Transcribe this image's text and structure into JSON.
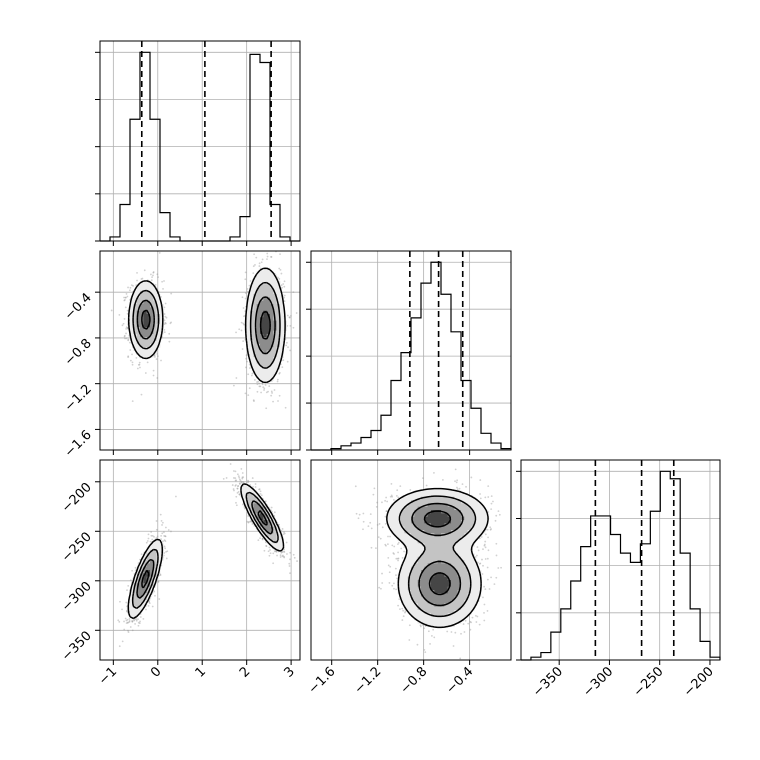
{
  "figure": {
    "type": "corner-plot",
    "background": "#ffffff",
    "grid_color": "#b0b0b0",
    "line_color": "#000000",
    "point_color": "#9a9a9a"
  },
  "chart_data": [
    {
      "type": "histogram",
      "parameter": 0,
      "xlim": [
        -1.3,
        3.2
      ],
      "xticks": [
        "-1",
        "0",
        "1",
        "2",
        "3"
      ],
      "xticks_v": [
        -1,
        0,
        1,
        2,
        3
      ],
      "show_xtick_labels": false,
      "grid": true,
      "bins": [
        -1.3,
        -1.075,
        -0.85,
        -0.625,
        -0.4,
        -0.175,
        0.05,
        0.275,
        0.5,
        0.725,
        0.95,
        1.175,
        1.4,
        1.625,
        1.85,
        2.075,
        2.3,
        2.525,
        2.75,
        2.975,
        3.2
      ],
      "counts": [
        0,
        2,
        18,
        60,
        93,
        60,
        14,
        2,
        0,
        0,
        0,
        0,
        0,
        2,
        12,
        92,
        88,
        18,
        2,
        0
      ],
      "quantiles": [
        -0.36,
        1.06,
        2.55
      ]
    },
    {
      "type": "histogram",
      "parameter": 1,
      "xlim": [
        -1.78,
        -0.04
      ],
      "xticks": [
        "-1.6",
        "-1.2",
        "-0.8",
        "-0.4"
      ],
      "xticks_v": [
        -1.6,
        -1.2,
        -0.8,
        -0.4
      ],
      "show_xtick_labels": false,
      "grid": true,
      "bins": [
        -1.78,
        -1.693,
        -1.606,
        -1.519,
        -1.432,
        -1.345,
        -1.258,
        -1.171,
        -1.084,
        -0.997,
        -0.91,
        -0.823,
        -0.736,
        -0.649,
        -0.562,
        -0.475,
        -0.388,
        -0.301,
        -0.214,
        -0.127,
        -0.04
      ],
      "counts": [
        0,
        0,
        1,
        3,
        5,
        9,
        14,
        25,
        50,
        70,
        95,
        120,
        135,
        112,
        85,
        50,
        30,
        12,
        5,
        1
      ],
      "quantiles": [
        -0.92,
        -0.67,
        -0.46
      ]
    },
    {
      "type": "histogram",
      "parameter": 2,
      "xlim": [
        -388,
        -190
      ],
      "xticks": [
        "-350",
        "-300",
        "-250",
        "-200"
      ],
      "xticks_v": [
        -350,
        -300,
        -250,
        -200
      ],
      "show_xtick_labels": true,
      "grid": true,
      "bins": [
        -388,
        -378.1,
        -368.2,
        -358.3,
        -348.4,
        -338.5,
        -328.6,
        -318.7,
        -308.8,
        -298.9,
        -289,
        -279.1,
        -269.2,
        -259.3,
        -249.4,
        -239.5,
        -229.6,
        -219.7,
        -209.8,
        -199.9,
        -190
      ],
      "counts": [
        0,
        3,
        8,
        30,
        55,
        85,
        122,
        155,
        155,
        135,
        115,
        105,
        125,
        160,
        203,
        195,
        115,
        55,
        20,
        3
      ],
      "quantiles": [
        -314,
        -268,
        -236
      ]
    },
    {
      "type": "scatter-density",
      "pair": [
        0,
        1
      ],
      "xlim": [
        -1.3,
        3.2
      ],
      "ylim": [
        -1.78,
        -0.04
      ],
      "yticks": [
        "-1.6",
        "-1.2",
        "-0.8",
        "-0.4"
      ],
      "yticks_v": [
        -1.6,
        -1.2,
        -0.8,
        -0.4
      ],
      "show_xtick_labels": false,
      "show_ytick_labels": true,
      "grid": true,
      "clusters": [
        {
          "x": -0.27,
          "y": -0.64,
          "sx": 0.19,
          "sy": 0.17,
          "rho": 0,
          "n": 1000
        },
        {
          "x": 2.42,
          "y": -0.69,
          "sx": 0.22,
          "sy": 0.25,
          "rho": 0,
          "n": 1000
        }
      ],
      "contour_levels": [
        0.5,
        1.0,
        1.5,
        2.0
      ]
    },
    {
      "type": "scatter-density",
      "pair": [
        0,
        2
      ],
      "xlim": [
        -1.3,
        3.2
      ],
      "ylim": [
        -380,
        -178
      ],
      "xticks": [
        "-1",
        "0",
        "1",
        "2",
        "3"
      ],
      "xticks_v": [
        -1,
        0,
        1,
        2,
        3
      ],
      "yticks": [
        "-350",
        "-300",
        "-250",
        "-200"
      ],
      "yticks_v": [
        -350,
        -300,
        -250,
        -200
      ],
      "show_xtick_labels": true,
      "show_ytick_labels": true,
      "grid": true,
      "clusters": [
        {
          "x": -0.28,
          "y": -298,
          "sx": 0.19,
          "sy": 20,
          "rho": 0.75,
          "n": 1000
        },
        {
          "x": 2.35,
          "y": -236,
          "sx": 0.24,
          "sy": 17,
          "rho": -0.85,
          "n": 1000
        }
      ],
      "contour_levels": [
        0.5,
        1.0,
        1.5,
        2.0
      ]
    },
    {
      "type": "scatter-density",
      "pair": [
        1,
        2
      ],
      "xlim": [
        -1.78,
        -0.04
      ],
      "ylim": [
        -380,
        -178
      ],
      "xticks": [
        "-1.6",
        "-1.2",
        "-0.8",
        "-0.4"
      ],
      "xticks_v": [
        -1.6,
        -1.2,
        -0.8,
        -0.4
      ],
      "show_xtick_labels": true,
      "show_ytick_labels": false,
      "grid": true,
      "clusters": [
        {
          "x": -0.68,
          "y": -237,
          "sx": 0.22,
          "sy": 15,
          "rho": 0,
          "n": 1000
        },
        {
          "x": -0.66,
          "y": -303,
          "sx": 0.18,
          "sy": 22,
          "rho": 0,
          "n": 1000
        }
      ],
      "contour_levels": [
        0.5,
        1.0,
        1.5,
        2.0
      ]
    }
  ]
}
